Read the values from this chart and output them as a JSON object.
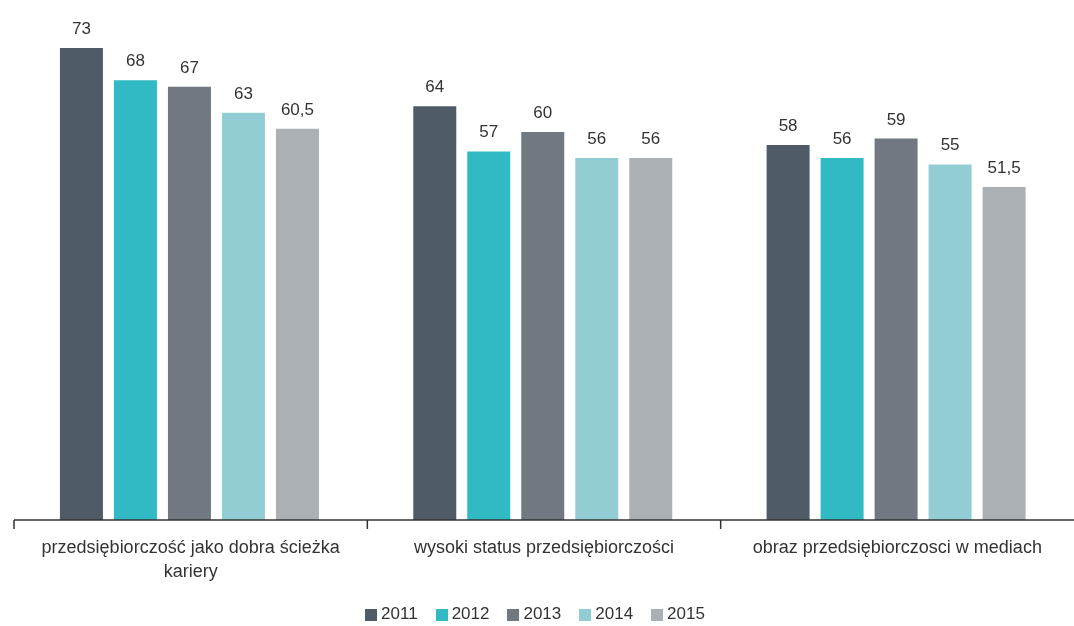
{
  "chart_data": {
    "type": "bar",
    "categories": [
      "przedsiębiorczość jako dobra ścieżka kariery",
      "wysoki status przedsiębiorczości",
      "obraz przedsiębiorczosci w mediach"
    ],
    "series": [
      {
        "name": "2011",
        "color": "#4f5b66",
        "values": [
          73,
          64,
          58
        ],
        "value_labels": [
          "73",
          "64",
          "58"
        ]
      },
      {
        "name": "2012",
        "color": "#31b9c4",
        "values": [
          68,
          57,
          56
        ],
        "value_labels": [
          "68",
          "57",
          "56"
        ]
      },
      {
        "name": "2013",
        "color": "#717880",
        "values": [
          67,
          60,
          59
        ],
        "value_labels": [
          "67",
          "60",
          "59"
        ]
      },
      {
        "name": "2014",
        "color": "#92cdd4",
        "values": [
          63,
          56,
          55
        ],
        "value_labels": [
          "63",
          "56",
          "55"
        ]
      },
      {
        "name": "2015",
        "color": "#abb0b5",
        "values": [
          60.5,
          56,
          51.5
        ],
        "value_labels": [
          "60,5",
          "56",
          "51,5"
        ]
      }
    ],
    "legend": "bottom"
  }
}
